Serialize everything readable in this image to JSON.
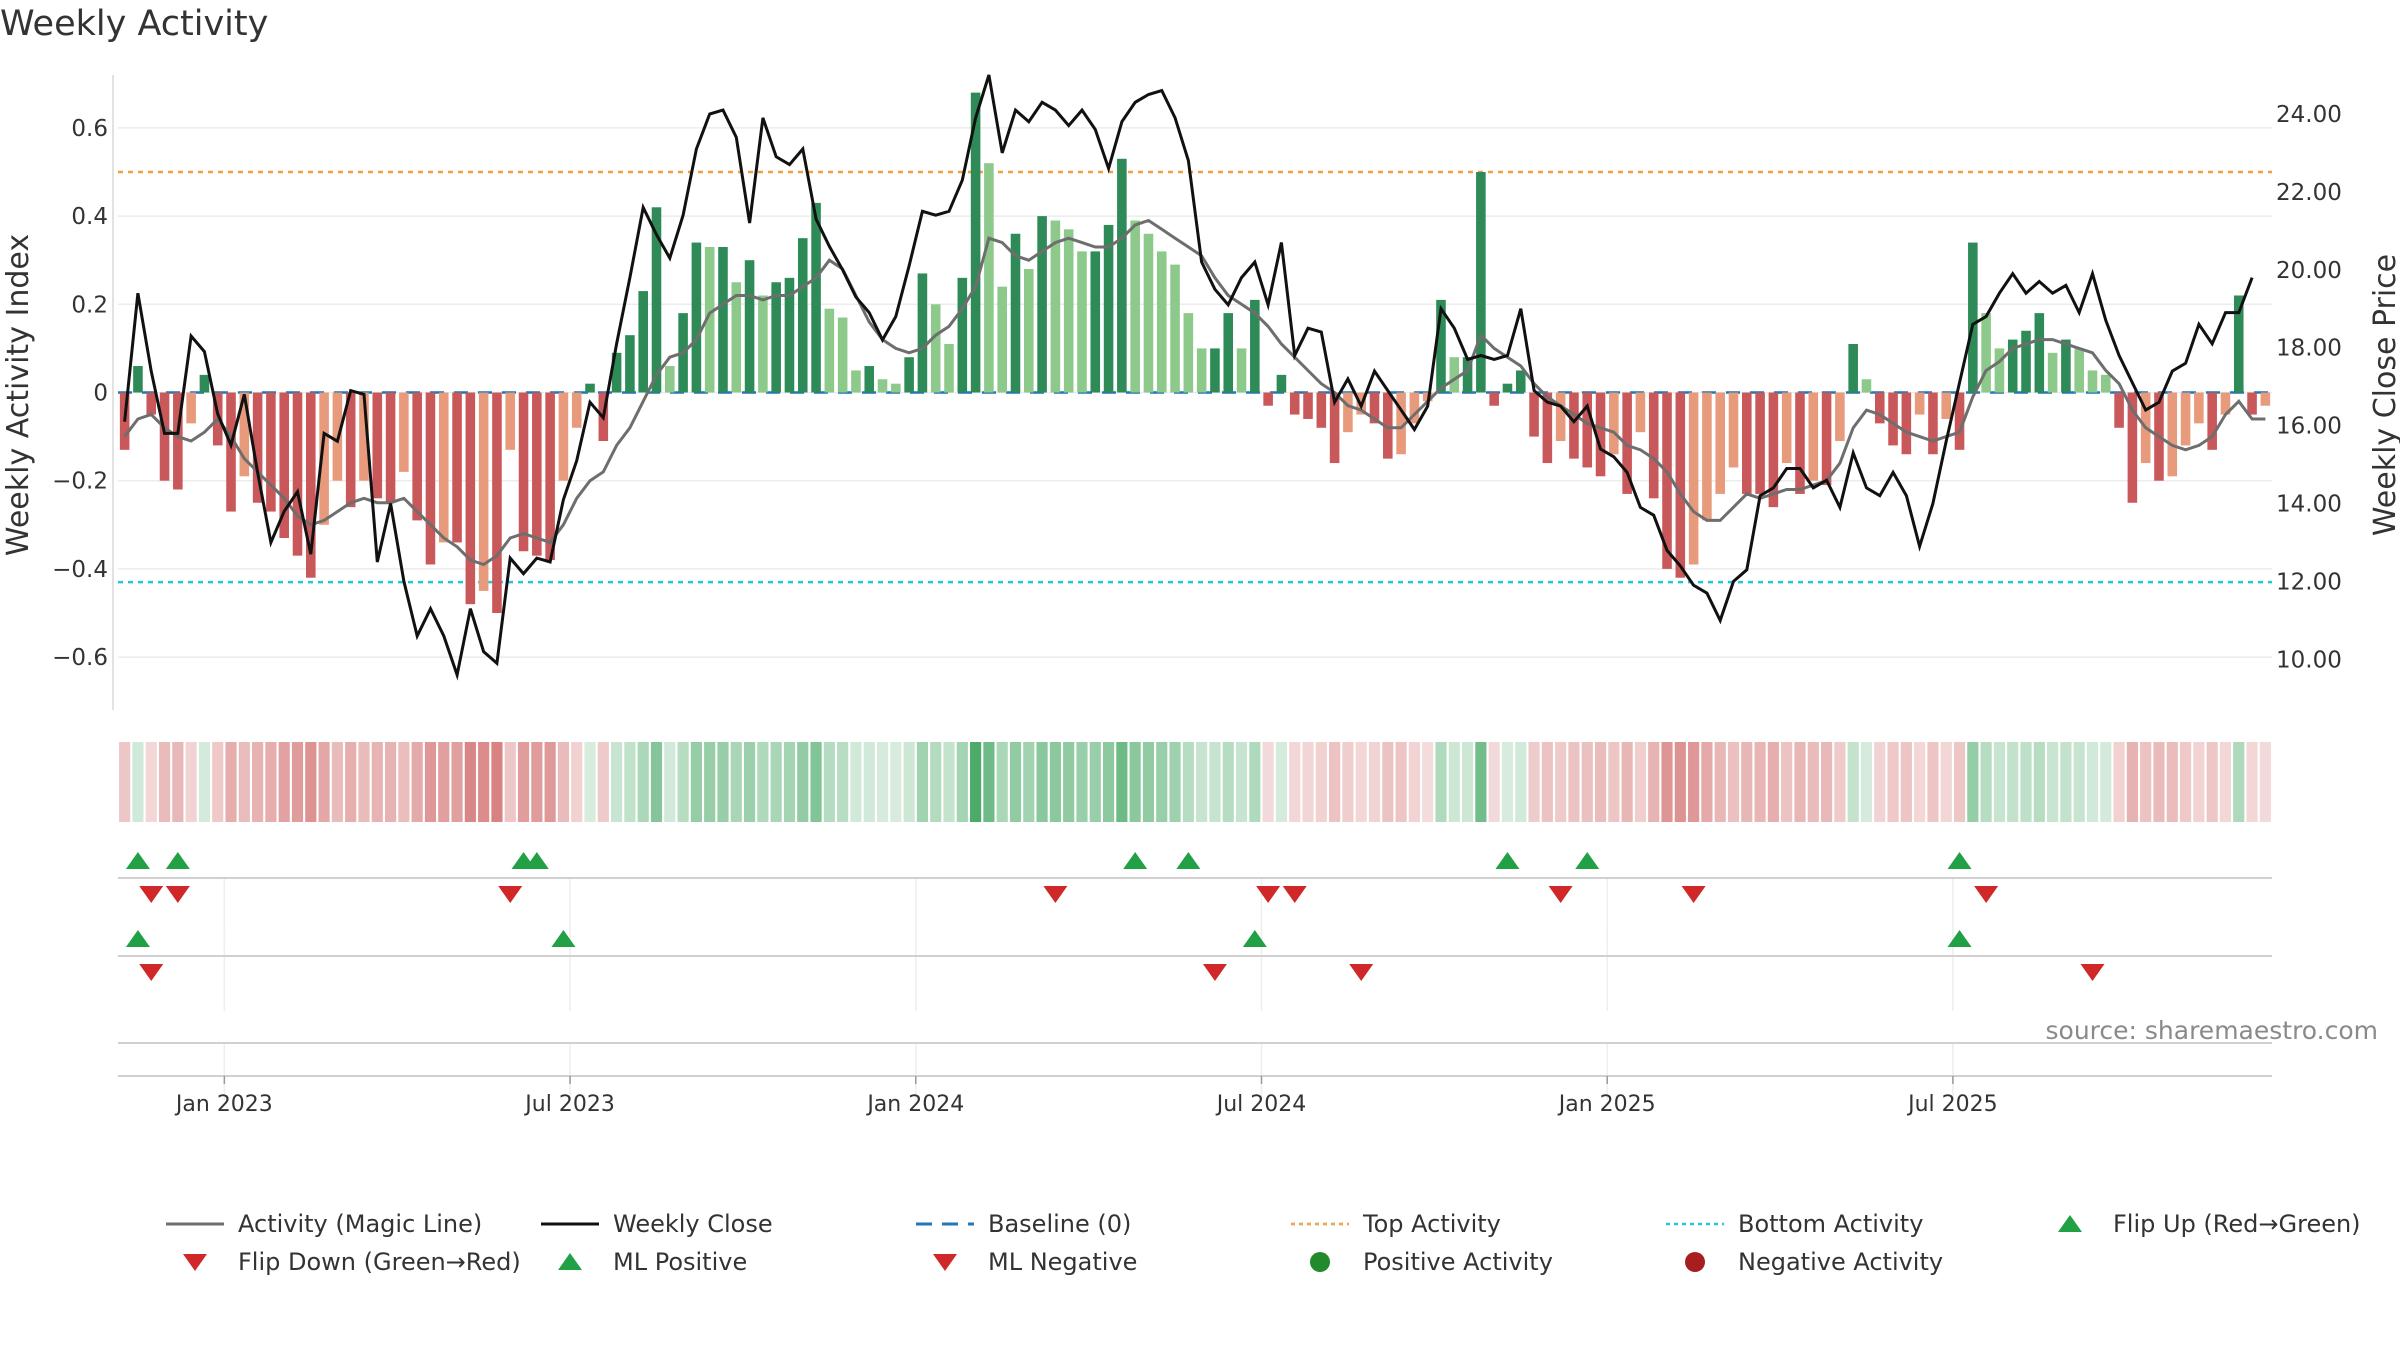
{
  "chart_data": {
    "type": "bar",
    "title": "Weekly Activity",
    "ylabel_left": "Weekly Activity Index",
    "ylabel_right": "Weekly Close Price",
    "source": "source: sharemaestro.com",
    "ylim_left": [
      -0.72,
      0.72
    ],
    "ylim_right": [
      8.7,
      25.0
    ],
    "left_ticks": [
      {
        "value": 0.6,
        "label": "0.6"
      },
      {
        "value": 0.4,
        "label": "0.4"
      },
      {
        "value": 0.2,
        "label": "0.2"
      },
      {
        "value": 0,
        "label": "0"
      },
      {
        "value": -0.2,
        "label": "−0.2"
      },
      {
        "value": -0.4,
        "label": "−0.4"
      },
      {
        "value": -0.6,
        "label": "−0.6"
      }
    ],
    "right_ticks": [
      {
        "value": 24,
        "label": "24.00"
      },
      {
        "value": 22,
        "label": "22.00"
      },
      {
        "value": 20,
        "label": "20.00"
      },
      {
        "value": 18,
        "label": "18.00"
      },
      {
        "value": 16,
        "label": "16.00"
      },
      {
        "value": 14,
        "label": "14.00"
      },
      {
        "value": 12,
        "label": "12.00"
      },
      {
        "value": 10,
        "label": "10.00"
      }
    ],
    "x_ticks": [
      {
        "week": 7.5,
        "label": "Jan 2023"
      },
      {
        "week": 33.5,
        "label": "Jul 2023"
      },
      {
        "week": 59.5,
        "label": "Jan 2024"
      },
      {
        "week": 85.5,
        "label": "Jul 2024"
      },
      {
        "week": 111.5,
        "label": "Jan 2025"
      },
      {
        "week": 137.5,
        "label": "Jul 2025"
      }
    ],
    "top_activity": 0.5,
    "bottom_activity": -0.43,
    "activity": [
      -0.13,
      0.06,
      -0.05,
      -0.2,
      -0.22,
      -0.07,
      0.04,
      -0.12,
      -0.27,
      -0.19,
      -0.25,
      -0.27,
      -0.33,
      -0.37,
      -0.42,
      -0.3,
      -0.2,
      -0.26,
      -0.2,
      -0.24,
      -0.25,
      -0.18,
      -0.29,
      -0.39,
      -0.34,
      -0.34,
      -0.48,
      -0.45,
      -0.5,
      -0.13,
      -0.36,
      -0.37,
      -0.38,
      -0.2,
      -0.08,
      0.02,
      -0.11,
      0.09,
      0.13,
      0.23,
      0.42,
      0.06,
      0.18,
      0.34,
      0.33,
      0.33,
      0.25,
      0.3,
      0.22,
      0.25,
      0.26,
      0.35,
      0.43,
      0.19,
      0.17,
      0.05,
      0.06,
      0.03,
      0.02,
      0.08,
      0.27,
      0.2,
      0.11,
      0.26,
      0.68,
      0.52,
      0.24,
      0.36,
      0.28,
      0.4,
      0.39,
      0.37,
      0.32,
      0.32,
      0.38,
      0.53,
      0.39,
      0.36,
      0.32,
      0.29,
      0.18,
      0.1,
      0.1,
      0.18,
      0.1,
      0.21,
      -0.03,
      0.04,
      -0.05,
      -0.06,
      -0.08,
      -0.16,
      -0.09,
      -0.05,
      -0.07,
      -0.15,
      -0.14,
      -0.07,
      -0.02,
      0.21,
      0.08,
      0.08,
      0.5,
      -0.03,
      0.02,
      0.05,
      -0.1,
      -0.16,
      -0.11,
      -0.15,
      -0.17,
      -0.19,
      -0.14,
      -0.23,
      -0.09,
      -0.24,
      -0.4,
      -0.42,
      -0.39,
      -0.29,
      -0.23,
      -0.17,
      -0.23,
      -0.23,
      -0.26,
      -0.16,
      -0.23,
      -0.2,
      -0.21,
      -0.11,
      0.11,
      0.03,
      -0.07,
      -0.12,
      -0.14,
      -0.05,
      -0.14,
      -0.06,
      -0.13,
      0.34,
      0.18,
      0.1,
      0.12,
      0.14,
      0.18,
      0.09,
      0.12,
      0.1,
      0.05,
      0.04,
      -0.08,
      -0.25,
      -0.16,
      -0.2,
      -0.19,
      -0.12,
      -0.07,
      -0.13,
      -0.05,
      0.22,
      -0.05,
      -0.03
    ],
    "magic_line": [
      -0.1,
      -0.06,
      -0.05,
      -0.08,
      -0.1,
      -0.11,
      -0.09,
      -0.06,
      -0.1,
      -0.15,
      -0.18,
      -0.21,
      -0.24,
      -0.28,
      -0.3,
      -0.29,
      -0.27,
      -0.25,
      -0.24,
      -0.25,
      -0.25,
      -0.24,
      -0.27,
      -0.3,
      -0.33,
      -0.35,
      -0.38,
      -0.39,
      -0.37,
      -0.33,
      -0.32,
      -0.33,
      -0.34,
      -0.3,
      -0.24,
      -0.2,
      -0.18,
      -0.12,
      -0.08,
      -0.02,
      0.04,
      0.08,
      0.09,
      0.12,
      0.18,
      0.2,
      0.22,
      0.22,
      0.21,
      0.22,
      0.22,
      0.24,
      0.26,
      0.3,
      0.28,
      0.22,
      0.16,
      0.12,
      0.1,
      0.09,
      0.1,
      0.13,
      0.15,
      0.19,
      0.24,
      0.35,
      0.34,
      0.31,
      0.3,
      0.32,
      0.34,
      0.35,
      0.34,
      0.33,
      0.33,
      0.35,
      0.38,
      0.39,
      0.37,
      0.35,
      0.33,
      0.31,
      0.26,
      0.22,
      0.2,
      0.18,
      0.15,
      0.11,
      0.08,
      0.05,
      0.02,
      0,
      -0.03,
      -0.04,
      -0.06,
      -0.08,
      -0.08,
      -0.05,
      -0.02,
      0.01,
      0.03,
      0.05,
      0.13,
      0.1,
      0.08,
      0.06,
      0.02,
      -0.01,
      -0.03,
      -0.05,
      -0.07,
      -0.08,
      -0.09,
      -0.12,
      -0.13,
      -0.15,
      -0.18,
      -0.23,
      -0.27,
      -0.29,
      -0.29,
      -0.26,
      -0.23,
      -0.24,
      -0.23,
      -0.22,
      -0.22,
      -0.21,
      -0.2,
      -0.16,
      -0.08,
      -0.04,
      -0.05,
      -0.07,
      -0.09,
      -0.1,
      -0.11,
      -0.1,
      -0.09,
      -0.01,
      0.05,
      0.07,
      0.1,
      0.11,
      0.12,
      0.12,
      0.11,
      0.1,
      0.09,
      0.05,
      0.02,
      -0.04,
      -0.08,
      -0.1,
      -0.12,
      -0.13,
      -0.12,
      -0.1,
      -0.05,
      -0.02,
      -0.06,
      -0.06
    ],
    "weekly_close": [
      16.1,
      19.4,
      17.4,
      15.8,
      15.8,
      18.3,
      17.9,
      16.3,
      15.5,
      16.8,
      14.8,
      13.0,
      13.8,
      14.3,
      12.7,
      15.8,
      15.6,
      16.9,
      16.8,
      12.5,
      14.0,
      12.0,
      10.6,
      11.3,
      10.6,
      9.6,
      11.3,
      10.2,
      9.9,
      12.6,
      12.2,
      12.6,
      12.5,
      14.1,
      15.1,
      16.6,
      16.2,
      18.1,
      19.8,
      21.6,
      20.9,
      20.3,
      21.4,
      23.1,
      24.0,
      24.1,
      23.4,
      21.2,
      23.9,
      22.9,
      22.7,
      23.1,
      21.3,
      20.6,
      20.0,
      19.3,
      18.9,
      18.2,
      18.8,
      20.1,
      21.5,
      21.4,
      21.5,
      22.3,
      23.9,
      25.0,
      23.0,
      24.1,
      23.8,
      24.3,
      24.1,
      23.7,
      24.1,
      23.6,
      22.6,
      23.8,
      24.3,
      24.5,
      24.6,
      23.9,
      22.8,
      20.2,
      19.5,
      19.1,
      19.8,
      20.2,
      19.1,
      20.7,
      17.8,
      18.5,
      18.4,
      16.6,
      17.2,
      16.5,
      17.4,
      16.9,
      16.4,
      15.9,
      16.5,
      19.0,
      18.5,
      17.7,
      17.8,
      17.7,
      17.8,
      19.0,
      16.9,
      16.6,
      16.5,
      16.1,
      16.5,
      15.4,
      15.2,
      14.8,
      13.9,
      13.7,
      12.8,
      12.4,
      11.9,
      11.7,
      11.0,
      12.0,
      12.3,
      14.2,
      14.4,
      14.9,
      14.9,
      14.4,
      14.6,
      13.9,
      15.3,
      14.4,
      14.2,
      14.8,
      14.2,
      12.9,
      14.0,
      15.6,
      17.1,
      18.6,
      18.8,
      19.4,
      19.9,
      19.4,
      19.7,
      19.4,
      19.6,
      18.9,
      19.9,
      18.7,
      17.8,
      17.1,
      16.4,
      16.6,
      17.4,
      17.6,
      18.6,
      18.1,
      18.9,
      18.9,
      19.8
    ],
    "flip_up_weeks": [
      1,
      4,
      30,
      31,
      76,
      80,
      104,
      110,
      138
    ],
    "flip_down_weeks": [
      2,
      4,
      29,
      70,
      86,
      88,
      108,
      118,
      140
    ],
    "ml_positive_weeks": [
      1,
      33,
      85,
      138
    ],
    "ml_negative_weeks": [
      2,
      82,
      93,
      148
    ]
  },
  "legend": [
    {
      "label": "Activity (Magic Line)",
      "symbol": "line-gray"
    },
    {
      "label": "Weekly Close",
      "symbol": "line-black"
    },
    {
      "label": "Baseline (0)",
      "symbol": "dash-blue"
    },
    {
      "label": "Top Activity",
      "symbol": "dot-orange"
    },
    {
      "label": "Bottom Activity",
      "symbol": "dot-cyan"
    },
    {
      "label": "Flip Up (Red→Green)",
      "symbol": "triangle-up-green"
    },
    {
      "label": "Flip Down (Green→Red)",
      "symbol": "triangle-down-red"
    },
    {
      "label": "ML Positive",
      "symbol": "triangle-up-green"
    },
    {
      "label": "ML Negative",
      "symbol": "triangle-down-red"
    },
    {
      "label": "Positive Activity",
      "symbol": "circle-green"
    },
    {
      "label": "Negative Activity",
      "symbol": "circle-red"
    }
  ],
  "colors": {
    "pos_dark": "#2e8b57",
    "pos_light": "#8cc98a",
    "neg_dark": "#c9585a",
    "neg_light": "#e89a7c",
    "magic": "#6e6e6e",
    "close": "#111111",
    "baseline": "#1f77b4",
    "top": "#f0a040",
    "bottom": "#22c8d8",
    "green_marker": "#22a046",
    "red_marker": "#d02828"
  }
}
